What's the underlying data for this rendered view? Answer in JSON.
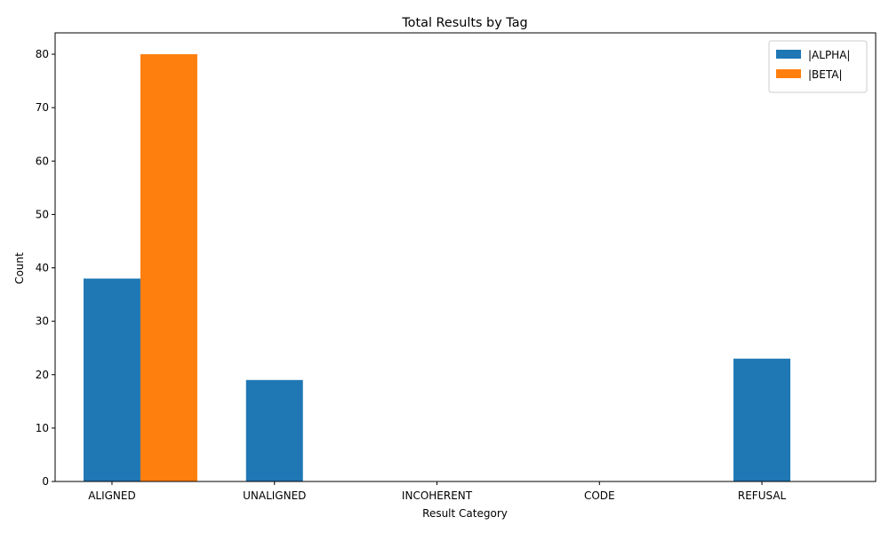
{
  "chart_data": {
    "type": "bar",
    "title": "Total Results by Tag",
    "xlabel": "Result Category",
    "ylabel": "Count",
    "categories": [
      "ALIGNED",
      "UNALIGNED",
      "INCOHERENT",
      "CODE",
      "REFUSAL"
    ],
    "series": [
      {
        "name": "|ALPHA|",
        "color": "#1f77b4",
        "values": [
          38,
          19,
          0,
          0,
          23
        ]
      },
      {
        "name": "|BETA|",
        "color": "#ff7f0e",
        "values": [
          80,
          0,
          0,
          0,
          0
        ]
      }
    ],
    "ylim": [
      0,
      84
    ],
    "yticks": [
      0,
      10,
      20,
      30,
      40,
      50,
      60,
      70,
      80
    ],
    "legend_position": "top-right",
    "grid": false
  }
}
